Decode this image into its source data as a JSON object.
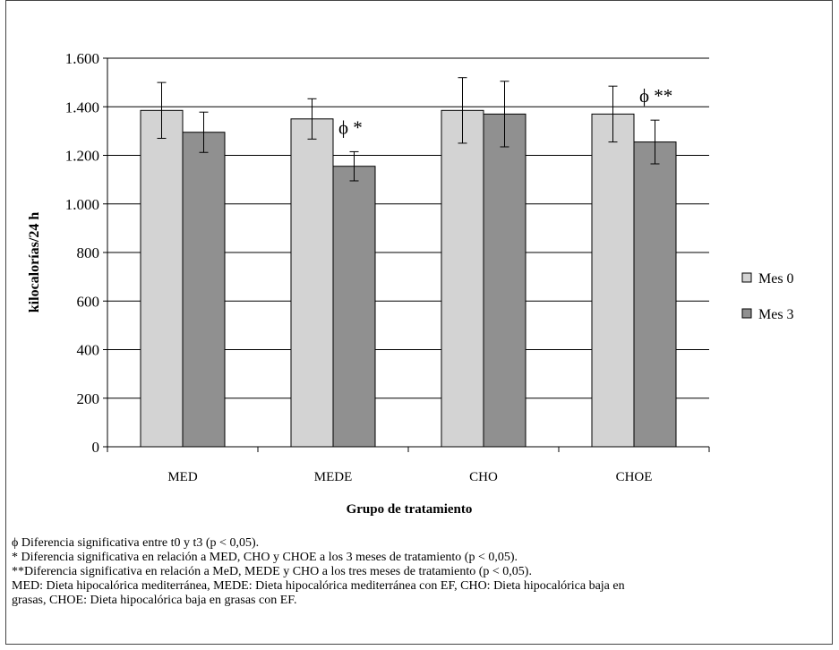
{
  "chart_data": {
    "type": "bar",
    "categories": [
      "MED",
      "MEDE",
      "CHO",
      "CHOE"
    ],
    "series": [
      {
        "name": "Mes 0",
        "values": [
          1385,
          1350,
          1385,
          1370
        ],
        "error": [
          115,
          83,
          135,
          115
        ],
        "color": "#d3d3d3"
      },
      {
        "name": "Mes 3",
        "values": [
          1295,
          1155,
          1370,
          1255
        ],
        "error": [
          83,
          60,
          135,
          90
        ],
        "color": "#909090"
      }
    ],
    "annotations": [
      {
        "category": "MEDE",
        "text": "ϕ *"
      },
      {
        "category": "CHOE",
        "text": "ϕ **"
      }
    ],
    "ylabel": "kilocalorías/24 h",
    "xlabel": "Grupo de tratamiento",
    "ylim": [
      0,
      1600
    ],
    "yticks": [
      0,
      200,
      400,
      600,
      800,
      1000,
      1200,
      1400,
      1600
    ],
    "ytick_labels": [
      "0",
      "200",
      "400",
      "600",
      "800",
      "1.000",
      "1.200",
      "1.400",
      "1.600"
    ],
    "grid": true,
    "legend": "right"
  },
  "notes": {
    "line1": "ϕ Diferencia significativa entre t0 y t3 (p < 0,05).",
    "line2": "* Diferencia significativa en relación a MED, CHO y CHOE a los 3 meses de tratamiento (p < 0,05).",
    "line3": "**Diferencia significativa en relación a MeD, MEDE y CHO a los tres meses de tratamiento (p < 0,05).",
    "line4": "MED: Dieta hipocalórica mediterránea, MEDE: Dieta hipocalórica mediterránea con EF, CHO: Dieta hipocalórica baja en",
    "line5": "grasas, CHOE: Dieta hipocalórica baja en grasas con EF."
  }
}
